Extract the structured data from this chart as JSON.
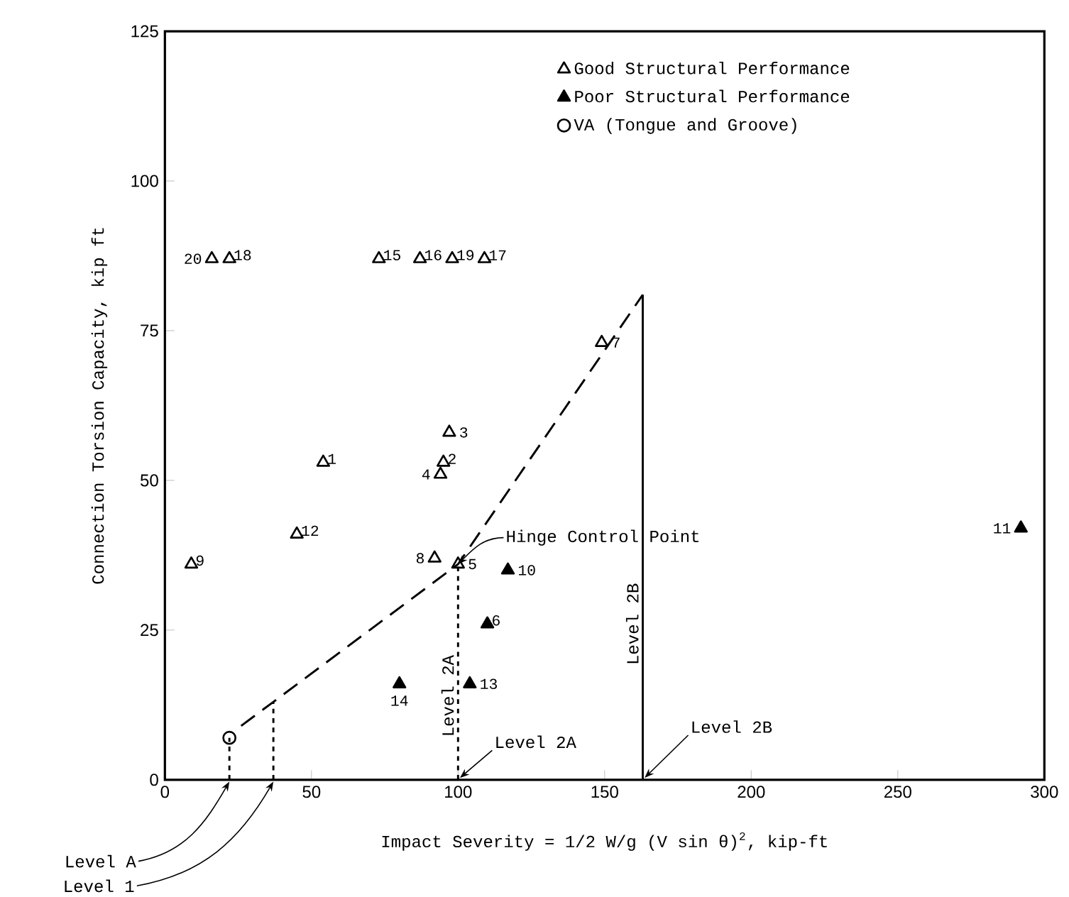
{
  "chart_data": {
    "type": "scatter",
    "xlabel": "Impact Severity = 1/2 W/g (V sin θ)$^{2}$, kip-ft",
    "ylabel": "Connection Torsion Capacity, kip ft",
    "xlim": [
      0,
      300
    ],
    "ylim": [
      0,
      125
    ],
    "xticks": [
      0,
      50,
      100,
      150,
      200,
      250,
      300
    ],
    "yticks": [
      0,
      25,
      50,
      75,
      100,
      125
    ],
    "legend": "top right",
    "series": [
      {
        "name": "Good Structural Performance",
        "color": "#000000",
        "marker": "triangle",
        "x": [
          54,
          95,
          97,
          94,
          100,
          149,
          92,
          9,
          45,
          73,
          87,
          109,
          22,
          98,
          16
        ],
        "values": [
          53,
          53,
          58,
          51,
          36,
          73,
          37,
          36,
          41,
          87,
          87,
          87,
          87,
          87,
          87
        ]
      },
      {
        "name": "Poor Structural Performance",
        "color": "#000000",
        "marker": "triangle",
        "x": [
          110,
          117,
          292,
          104,
          80
        ],
        "values": [
          26,
          35,
          42,
          16,
          16
        ]
      },
      {
        "name": "VA (Tongue and Groove)",
        "color": "#000000",
        "marker": "circle",
        "x": [
          22
        ],
        "values": [
          7
        ]
      },
      {
        "type": "line",
        "color": "#000000",
        "marker": "none",
        "line_style": "dashed",
        "x": [
          26,
          37,
          100,
          163
        ],
        "values": [
          9,
          13,
          36,
          81
        ]
      },
      {
        "type": "line",
        "color": "#000000",
        "marker": "none",
        "line_style": "dotted",
        "x": [
          22,
          22
        ],
        "values": [
          0,
          7
        ]
      },
      {
        "type": "line",
        "color": "#000000",
        "marker": "none",
        "line_style": "dotted",
        "x": [
          37,
          37
        ],
        "values": [
          0,
          13
        ]
      },
      {
        "type": "line",
        "color": "#000000",
        "marker": "none",
        "line_style": "dotted",
        "x": [
          100,
          100
        ],
        "values": [
          0,
          36
        ]
      },
      {
        "type": "line",
        "color": "#000000",
        "marker": "none",
        "line_style": "solid",
        "x": [
          163,
          163
        ],
        "values": [
          0,
          81
        ]
      }
    ],
    "annotations": [
      {
        "text": "1",
        "x": 54,
        "y": 53
      },
      {
        "text": "2",
        "x": 95,
        "y": 53
      },
      {
        "text": "3",
        "x": 97,
        "y": 58
      },
      {
        "text": "4",
        "x": 94,
        "y": 51
      },
      {
        "text": "5",
        "x": 100,
        "y": 36
      },
      {
        "text": "6",
        "x": 110,
        "y": 26
      },
      {
        "text": "7",
        "x": 149,
        "y": 73
      },
      {
        "text": "8",
        "x": 92,
        "y": 37
      },
      {
        "text": "9",
        "x": 9,
        "y": 36
      },
      {
        "text": "10",
        "x": 117,
        "y": 35
      },
      {
        "text": "11",
        "x": 292,
        "y": 42
      },
      {
        "text": "12",
        "x": 45,
        "y": 41
      },
      {
        "text": "13",
        "x": 104,
        "y": 16
      },
      {
        "text": "14",
        "x": 80,
        "y": 16
      },
      {
        "text": "15",
        "x": 73,
        "y": 87
      },
      {
        "text": "16",
        "x": 87,
        "y": 87
      },
      {
        "text": "17",
        "x": 109,
        "y": 87
      },
      {
        "text": "18",
        "x": 22,
        "y": 87
      },
      {
        "text": "19",
        "x": 98,
        "y": 87
      },
      {
        "text": "20",
        "x": 16,
        "y": 87
      },
      {
        "text": "Hinge Control Point",
        "x": 100,
        "y": 36
      },
      {
        "text": "Level 2A",
        "x": 100,
        "y": 14
      },
      {
        "text": "Level 2A",
        "x": 100,
        "y": 0
      },
      {
        "text": "Level 2B",
        "x": 163,
        "y": 26
      },
      {
        "text": "Level 2B",
        "x": 163,
        "y": 0
      },
      {
        "text": "Level A",
        "x": 22,
        "y": 0
      },
      {
        "text": "Level 1",
        "x": 37,
        "y": 0
      }
    ]
  }
}
